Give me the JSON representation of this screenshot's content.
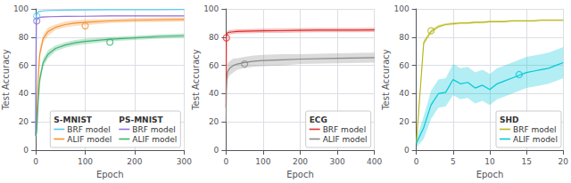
{
  "chart_data": [
    {
      "type": "line",
      "xlabel": "Epoch",
      "ylabel": "Test Accuracy",
      "xlim": [
        0,
        300
      ],
      "ylim": [
        0,
        100
      ],
      "xticks": [
        0,
        100,
        200,
        300
      ],
      "yticks": [
        0,
        20,
        40,
        60,
        80,
        100
      ],
      "grid": true,
      "legend": "lower right",
      "legend_titles": [
        "S-MNIST",
        "PS-MNIST"
      ],
      "series": [
        {
          "name": "BRF model",
          "group": "S-MNIST",
          "color": "#5bc8f0",
          "x": [
            0,
            1,
            2,
            3,
            5,
            8,
            15,
            30,
            60,
            100,
            150,
            200,
            250,
            300
          ],
          "values": [
            11,
            94,
            96.5,
            97.2,
            97.8,
            98.2,
            98.6,
            98.9,
            99.1,
            99.3,
            99.4,
            99.5,
            99.5,
            99.6
          ],
          "std": [
            1.5,
            0.8,
            0.6,
            0.5,
            0.4,
            0.4,
            0.3,
            0.3,
            0.3,
            0.2,
            0.2,
            0.2,
            0.2,
            0.2
          ],
          "point_x": 2,
          "point_y": 94.8
        },
        {
          "name": "ALIF model",
          "group": "S-MNIST",
          "color": "#f4932f",
          "x": [
            0,
            1,
            2,
            3,
            5,
            8,
            15,
            25,
            40,
            60,
            80,
            100,
            150,
            200,
            250,
            300
          ],
          "values": [
            11,
            14,
            20,
            32,
            52,
            68,
            79,
            84,
            87,
            89,
            90,
            90.5,
            91.5,
            92,
            92.3,
            92.5
          ],
          "std": [
            2,
            2,
            3,
            4,
            5,
            4,
            3,
            3,
            2,
            2,
            2,
            2,
            1.5,
            1.5,
            1.5,
            1.5
          ],
          "point_x": 100,
          "point_y": 88.0
        },
        {
          "name": "BRF model",
          "group": "PS-MNIST",
          "color": "#9370db",
          "x": [
            0,
            1,
            2,
            3,
            5,
            8,
            15,
            30,
            60,
            100,
            150,
            200,
            250,
            300
          ],
          "values": [
            10,
            91.5,
            92.5,
            93,
            93.5,
            94,
            94.3,
            94.5,
            94.7,
            94.8,
            95,
            95,
            95,
            95
          ],
          "std": [
            1.5,
            0.8,
            0.7,
            0.6,
            0.5,
            0.4,
            0.4,
            0.3,
            0.3,
            0.2,
            0.2,
            0.2,
            0.2,
            0.2
          ],
          "point_x": 2,
          "point_y": 91.5
        },
        {
          "name": "ALIF model",
          "group": "PS-MNIST",
          "color": "#3cb371",
          "x": [
            0,
            1,
            2,
            3,
            5,
            8,
            15,
            25,
            40,
            60,
            80,
            100,
            150,
            200,
            250,
            300
          ],
          "values": [
            10,
            11,
            14,
            20,
            35,
            50,
            62,
            68,
            72,
            74.5,
            76,
            77,
            78.5,
            79.5,
            80.5,
            81
          ],
          "std": [
            2,
            2,
            2,
            3,
            4,
            4,
            3,
            3,
            2,
            2,
            2,
            2,
            1.5,
            1.5,
            1.5,
            1.5
          ],
          "point_x": 150,
          "point_y": 76.5
        }
      ]
    },
    {
      "type": "line",
      "xlabel": "Epoch",
      "ylabel": "Test Accuracy",
      "xlim": [
        0,
        400
      ],
      "ylim": [
        0,
        100
      ],
      "xticks": [
        0,
        100,
        200,
        300,
        400
      ],
      "yticks": [
        0,
        20,
        40,
        60,
        80,
        100
      ],
      "grid": true,
      "legend": "lower right",
      "legend_titles": [
        "ECG"
      ],
      "series": [
        {
          "name": "BRF model",
          "group": "ECG",
          "color": "#e03030",
          "x": [
            0,
            1,
            2,
            3,
            5,
            10,
            20,
            30,
            50,
            100,
            150,
            200,
            250,
            300,
            350,
            400
          ],
          "values": [
            30,
            79.5,
            82,
            82.8,
            83.2,
            83.5,
            83.8,
            84,
            84.2,
            84.5,
            84.6,
            84.8,
            85,
            85,
            85,
            85.2
          ],
          "std": [
            5,
            1.5,
            1.5,
            1.5,
            1.5,
            1.5,
            1.5,
            1.5,
            1.5,
            1.5,
            1.5,
            1.5,
            1.5,
            1.5,
            1.5,
            1.5
          ],
          "point_x": 1,
          "point_y": 79.5
        },
        {
          "name": "ALIF model",
          "group": "ECG",
          "color": "#888888",
          "x": [
            0,
            1,
            2,
            3,
            5,
            10,
            15,
            20,
            30,
            50,
            75,
            100,
            150,
            200,
            300,
            400
          ],
          "values": [
            20,
            42,
            50,
            54,
            56,
            58,
            59,
            60,
            61,
            62,
            63,
            63.5,
            64,
            64.5,
            65,
            65.5
          ],
          "std": [
            5,
            7,
            6,
            6,
            6,
            5,
            5,
            5,
            4,
            4,
            4,
            4,
            4,
            3.5,
            3.5,
            3.5
          ],
          "point_x": 50,
          "point_y": 61.0
        }
      ]
    },
    {
      "type": "line",
      "xlabel": "Epoch",
      "ylabel": "Test Accuracy",
      "xlim": [
        0,
        20
      ],
      "ylim": [
        0,
        100
      ],
      "xticks": [
        0,
        5,
        10,
        15,
        20
      ],
      "yticks": [
        0,
        20,
        40,
        60,
        80,
        100
      ],
      "grid": true,
      "legend": "lower right",
      "legend_titles": [
        "SHD"
      ],
      "series": [
        {
          "name": "BRF model",
          "group": "SHD",
          "color": "#b8b820",
          "x": [
            0,
            1,
            2,
            3,
            4,
            5,
            6,
            7,
            8,
            9,
            10,
            11,
            12,
            13,
            14,
            15,
            16,
            17,
            18,
            19,
            20
          ],
          "values": [
            5,
            76,
            84,
            87.5,
            89,
            89.5,
            90,
            90,
            90.5,
            90.5,
            91,
            91,
            91,
            91.5,
            91.5,
            91.5,
            91.5,
            92,
            92,
            92,
            92
          ],
          "std": [
            1,
            2,
            1.5,
            1.2,
            1,
            1,
            0.8,
            0.8,
            0.8,
            0.8,
            0.8,
            0.8,
            0.8,
            0.8,
            0.8,
            0.8,
            0.8,
            0.8,
            0.8,
            0.8,
            0.8
          ],
          "point_x": 2,
          "point_y": 84.5
        },
        {
          "name": "ALIF model",
          "group": "SHD",
          "color": "#00c8d8",
          "x": [
            0,
            1,
            2,
            3,
            4,
            5,
            6,
            7,
            8,
            9,
            10,
            11,
            12,
            13,
            14,
            15,
            16,
            17,
            18,
            19,
            20
          ],
          "values": [
            5,
            16,
            32,
            40,
            41,
            50,
            47,
            48,
            44,
            46,
            43,
            47,
            49,
            51,
            53,
            55,
            56,
            57,
            58,
            60,
            62
          ],
          "std": [
            3,
            8,
            10,
            10,
            10,
            11,
            11,
            11,
            11,
            11,
            11,
            11,
            11,
            11,
            11,
            11,
            11,
            11,
            11,
            11,
            11
          ],
          "point_x": 14,
          "point_y": 53.5
        }
      ]
    }
  ]
}
